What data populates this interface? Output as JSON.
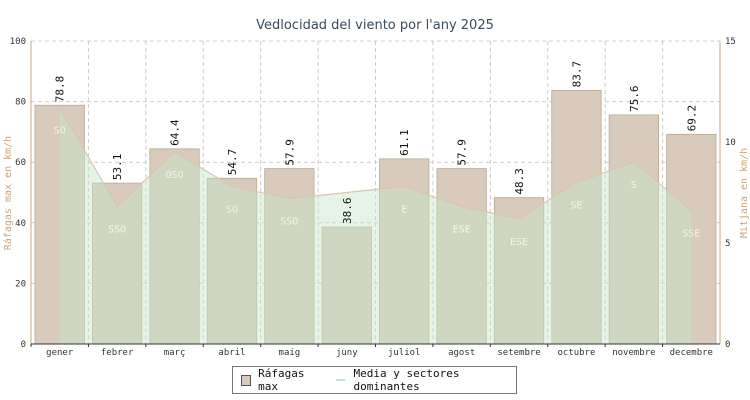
{
  "chart_data": {
    "type": "bar",
    "title": "Vedlocidad del viento por l'any 2025",
    "categories": [
      "gener",
      "febrer",
      "març",
      "abril",
      "maig",
      "juny",
      "juliol",
      "agost",
      "setembre",
      "octubre",
      "novembre",
      "decembre"
    ],
    "ylabel": "Ráfagas max en km/h",
    "y2label": "Mitjana en km/h",
    "ylim": [
      0,
      100
    ],
    "y2lim": [
      0,
      15
    ],
    "yticks": [
      "0",
      "20",
      "40",
      "60",
      "80",
      "100"
    ],
    "y2ticks": [
      "0",
      "5",
      "10",
      "15"
    ],
    "series": [
      {
        "name": "Ráfagas max",
        "type": "bar",
        "color": "#d8cbbb",
        "values": [
          78.8,
          53.1,
          64.4,
          54.7,
          57.9,
          38.6,
          61.1,
          57.9,
          48.3,
          83.7,
          75.6,
          69.2
        ]
      },
      {
        "name": "Media y sectores dominantes",
        "type": "area",
        "axis": "right",
        "color": "#c8e6c9",
        "values": [
          11.7,
          6.8,
          9.5,
          7.8,
          7.2,
          7.5,
          7.8,
          6.8,
          6.2,
          8.0,
          9.0,
          6.6
        ],
        "labels": [
          "SO",
          "SSO",
          "OSO",
          "SO",
          "SSO",
          "",
          "E",
          "ESE",
          "ESE",
          "SE",
          "S",
          "SSE"
        ]
      }
    ],
    "grid": true,
    "legend": "bottom-center"
  }
}
